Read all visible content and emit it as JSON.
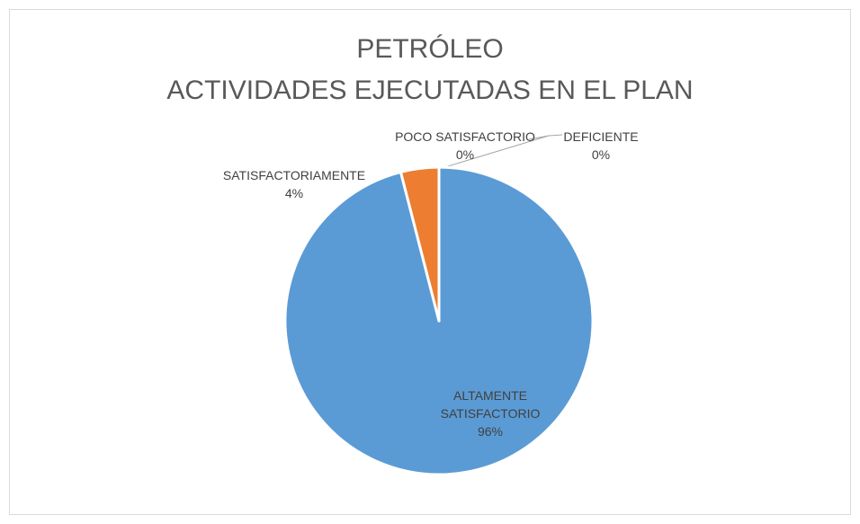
{
  "chart_data": {
    "type": "pie",
    "title": [
      "PETRÓLEO",
      "ACTIVIDADES EJECUTADAS EN EL PLAN"
    ],
    "categories": [
      "ALTAMENTE SATISFACTORIO",
      "SATISFACTORIAMENTE",
      "POCO SATISFACTORIO",
      "DEFICIENTE"
    ],
    "values": [
      96,
      4,
      0,
      0
    ],
    "value_labels": [
      "96%",
      "4%",
      "0%",
      "0%"
    ],
    "colors": [
      "#5b9bd5",
      "#ed7d31",
      "#a5a5a5",
      "#ffc000"
    ]
  }
}
